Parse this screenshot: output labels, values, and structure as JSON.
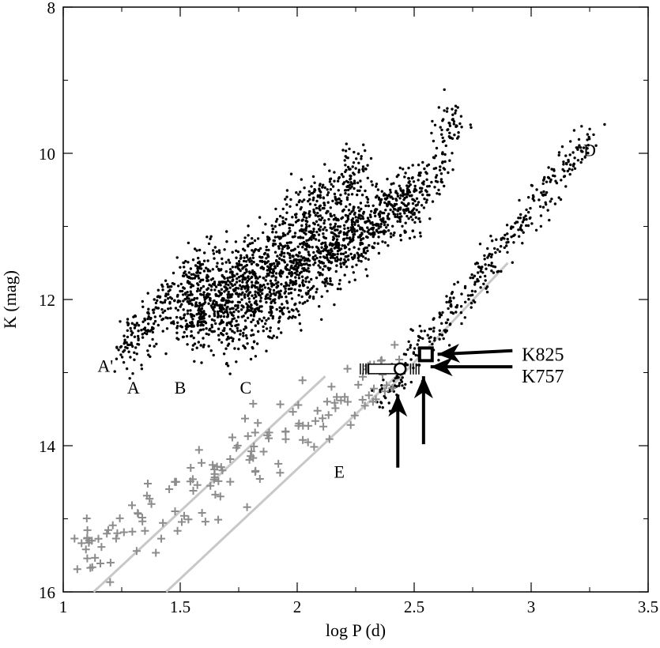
{
  "chart_data": {
    "type": "scatter",
    "title": "",
    "xlabel": "log P (d)",
    "ylabel": "K (mag)",
    "xlim": [
      1,
      3.5
    ],
    "ylim": [
      8,
      16
    ],
    "y_inverted": true,
    "x_ticks": [
      "1",
      "1.5",
      "2",
      "2.5",
      "3",
      "3.5"
    ],
    "y_ticks": [
      "8",
      "10",
      "12",
      "14",
      "16"
    ],
    "x_tick_values": [
      1,
      1.5,
      2,
      2.5,
      3,
      3.5
    ],
    "y_tick_values": [
      8,
      10,
      12,
      14,
      16
    ],
    "grid": false,
    "sequence_labels": [
      {
        "text": "A'",
        "x": 1.18,
        "y": 12.9
      },
      {
        "text": "A",
        "x": 1.3,
        "y": 13.2
      },
      {
        "text": "B",
        "x": 1.5,
        "y": 13.2
      },
      {
        "text": "C",
        "x": 1.78,
        "y": 13.2
      },
      {
        "text": "D",
        "x": 3.25,
        "y": 9.95
      },
      {
        "text": "E",
        "x": 2.18,
        "y": 14.35
      }
    ],
    "star_labels": [
      {
        "text": "K825",
        "x": 2.55,
        "y": 12.75
      },
      {
        "text": "K757",
        "x": 2.44,
        "y": 12.95
      }
    ],
    "series": [
      {
        "kind": "dots",
        "color": "#000000",
        "clouds": [
          {
            "x0": 1.25,
            "y0": 12.7,
            "x1": 1.62,
            "y1": 11.5,
            "spread": 0.35,
            "n": 260
          },
          {
            "x0": 1.5,
            "y0": 12.3,
            "x1": 2.28,
            "y1": 10.3,
            "spread": 0.45,
            "n": 700
          },
          {
            "x0": 1.55,
            "y0": 12.4,
            "x1": 2.5,
            "y1": 10.6,
            "spread": 0.4,
            "n": 700
          },
          {
            "x0": 1.7,
            "y0": 12.5,
            "x1": 2.55,
            "y1": 10.5,
            "spread": 0.45,
            "n": 600
          },
          {
            "x0": 2.58,
            "y0": 10.4,
            "x1": 2.68,
            "y1": 9.4,
            "spread": 0.25,
            "n": 90
          },
          {
            "x0": 2.35,
            "y0": 13.4,
            "x1": 3.25,
            "y1": 9.8,
            "spread": 0.22,
            "n": 380
          }
        ]
      },
      {
        "kind": "plus",
        "color": "#8c8c8c",
        "clouds": [
          {
            "x0": 1.05,
            "y0": 15.6,
            "x1": 2.45,
            "y1": 12.9,
            "spread": 0.45,
            "n": 150
          }
        ]
      }
    ],
    "fit_lines": [
      {
        "color": "#c8c8c8",
        "x": [
          1.13,
          2.12
        ],
        "y": [
          16.0,
          13.05
        ]
      },
      {
        "color": "#c8c8c8",
        "x": [
          1.44,
          2.44
        ],
        "y": [
          16.0,
          13.0
        ]
      },
      {
        "color": "#c8c8c8",
        "x": [
          2.4,
          2.9
        ],
        "y": [
          13.2,
          11.5
        ]
      }
    ],
    "stars": [
      {
        "name": "K757",
        "x": 2.44,
        "y": 12.95,
        "marker": "circle",
        "error_x": [
          2.27,
          2.52
        ]
      },
      {
        "name": "K825",
        "x": 2.55,
        "y": 12.75,
        "marker": "square"
      }
    ]
  }
}
